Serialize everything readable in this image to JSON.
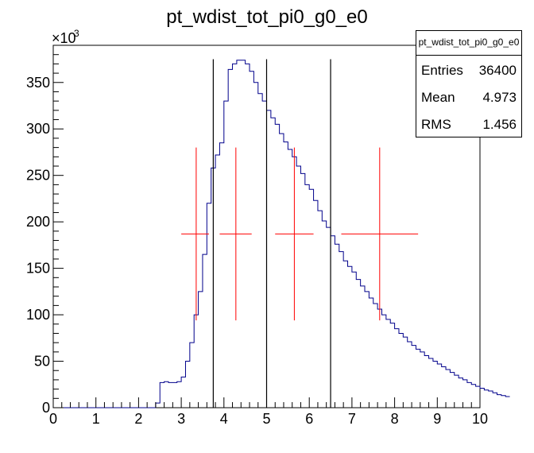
{
  "title": "pt_wdist_tot_pi0_g0_e0",
  "stats_box": {
    "name": "pt_wdist_tot_pi0_g0_e0",
    "rows": [
      {
        "label": "Entries",
        "value": "36400"
      },
      {
        "label": "Mean",
        "value": "4.973"
      },
      {
        "label": "RMS",
        "value": "1.456"
      }
    ]
  },
  "chart_data": {
    "type": "histogram",
    "title": "pt_wdist_tot_pi0_g0_e0",
    "xlabel": "",
    "ylabel": "",
    "xlim": [
      0,
      10
    ],
    "ylim": [
      0,
      390000
    ],
    "y_multiplier_label": "×10",
    "y_multiplier_exponent": "3",
    "x_tick_labels": [
      "0",
      "1",
      "2",
      "3",
      "4",
      "5",
      "6",
      "7",
      "8",
      "9",
      "10"
    ],
    "y_tick_labels": [
      "0",
      "50",
      "100",
      "150",
      "200",
      "250",
      "300",
      "350"
    ],
    "y_tick_values": [
      0,
      50000,
      100000,
      150000,
      200000,
      250000,
      300000,
      350000
    ],
    "grid": false,
    "colors": {
      "histogram": "#00008b",
      "markers": "#ff0000",
      "lines": "#000000"
    },
    "bins": {
      "x_start": 0,
      "bin_width": 0.1,
      "values": [
        0,
        0,
        0,
        0,
        0,
        0,
        0,
        0,
        0,
        0,
        0,
        0,
        0,
        0,
        0,
        0,
        0,
        0,
        0,
        0,
        0,
        0,
        0,
        0,
        5000,
        27000,
        28000,
        27000,
        27000,
        28000,
        33000,
        50000,
        70000,
        100000,
        125000,
        165000,
        220000,
        258000,
        272000,
        285000,
        330000,
        364000,
        370000,
        374000,
        374000,
        370000,
        362000,
        350000,
        338000,
        330000,
        320000,
        312000,
        305000,
        295000,
        286000,
        278000,
        270000,
        260000,
        252000,
        240000,
        235000,
        223000,
        212000,
        201000,
        194000,
        185000,
        176000,
        168000,
        158000,
        152000,
        146000,
        138000,
        131000,
        125000,
        118000,
        112000,
        106000,
        100000,
        95000,
        91000,
        85000,
        80000,
        76000,
        71000,
        67000,
        63000,
        60000,
        56000,
        53000,
        50000,
        47000,
        44000,
        41000,
        38000,
        35000,
        32000,
        30000,
        27000,
        25000,
        23000,
        21000,
        19000,
        18000,
        16000,
        14000,
        13000,
        12000
      ]
    },
    "vertical_lines_x": [
      3.75,
      5.0,
      6.5
    ],
    "vertical_lines_top_y": 375000,
    "cross_markers": [
      {
        "x": 3.35,
        "y": 187000,
        "x_err": [
          0.35,
          0.3
        ],
        "y_err": [
          93000,
          93000
        ]
      },
      {
        "x": 4.28,
        "y": 187000,
        "x_err": [
          0.38,
          0.37
        ],
        "y_err": [
          93000,
          93000
        ]
      },
      {
        "x": 5.65,
        "y": 187000,
        "x_err": [
          0.45,
          0.45
        ],
        "y_err": [
          93000,
          93000
        ]
      },
      {
        "x": 7.65,
        "y": 187000,
        "x_err": [
          0.9,
          0.9
        ],
        "y_err": [
          93000,
          93000
        ]
      }
    ]
  }
}
